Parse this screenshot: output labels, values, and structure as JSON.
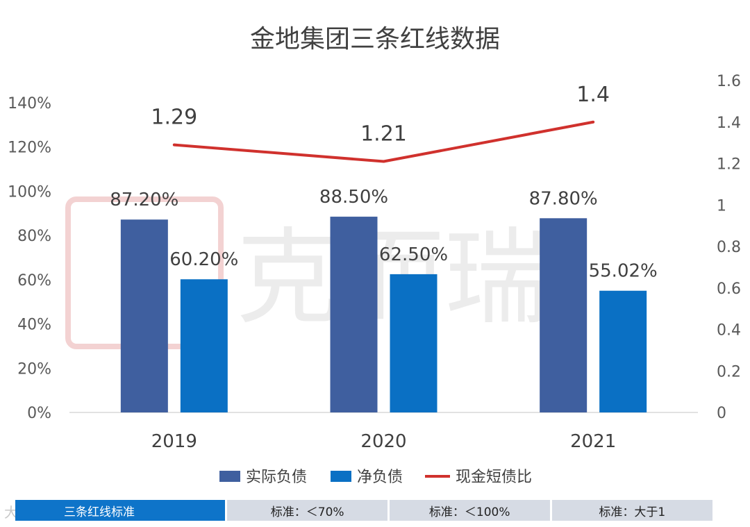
{
  "chart_data": {
    "type": "bar",
    "title": "金地集团三条红线数据",
    "categories": [
      "2019",
      "2020",
      "2021"
    ],
    "series": [
      {
        "name": "实际负债",
        "kind": "bar",
        "axis": "left",
        "color": "#3f5f9f",
        "values": [
          87.2,
          88.5,
          87.8
        ],
        "labels": [
          "87.20%",
          "88.50%",
          "87.80%"
        ]
      },
      {
        "name": "净负债",
        "kind": "bar",
        "axis": "left",
        "color": "#0a70c4",
        "values": [
          60.2,
          62.5,
          55.02
        ],
        "labels": [
          "60.20%",
          "62.50%",
          "55.02%"
        ]
      },
      {
        "name": "现金短债比",
        "kind": "line",
        "axis": "right",
        "color": "#d0312d",
        "values": [
          1.29,
          1.21,
          1.4
        ],
        "labels": [
          "1.29",
          "1.21",
          "1.4"
        ]
      }
    ],
    "yleft": {
      "min": 0,
      "max": 140,
      "ticks": [
        "0%",
        "20%",
        "40%",
        "60%",
        "80%",
        "100%",
        "120%",
        "140%"
      ]
    },
    "yright": {
      "min": 0,
      "max": 1.6,
      "ticks": [
        "0",
        "0.2",
        "0.4",
        "0.6",
        "0.8",
        "1",
        "1.2",
        "1.4",
        "1.6"
      ]
    },
    "legend_position": "bottom",
    "grid": false
  },
  "watermark": {
    "text": "克而瑞"
  },
  "standards": {
    "header": "三条红线标准",
    "cells": [
      "标准：＜70%",
      "标准：＜100%",
      "标准：大于1"
    ]
  },
  "source_mark": "大数跨境"
}
